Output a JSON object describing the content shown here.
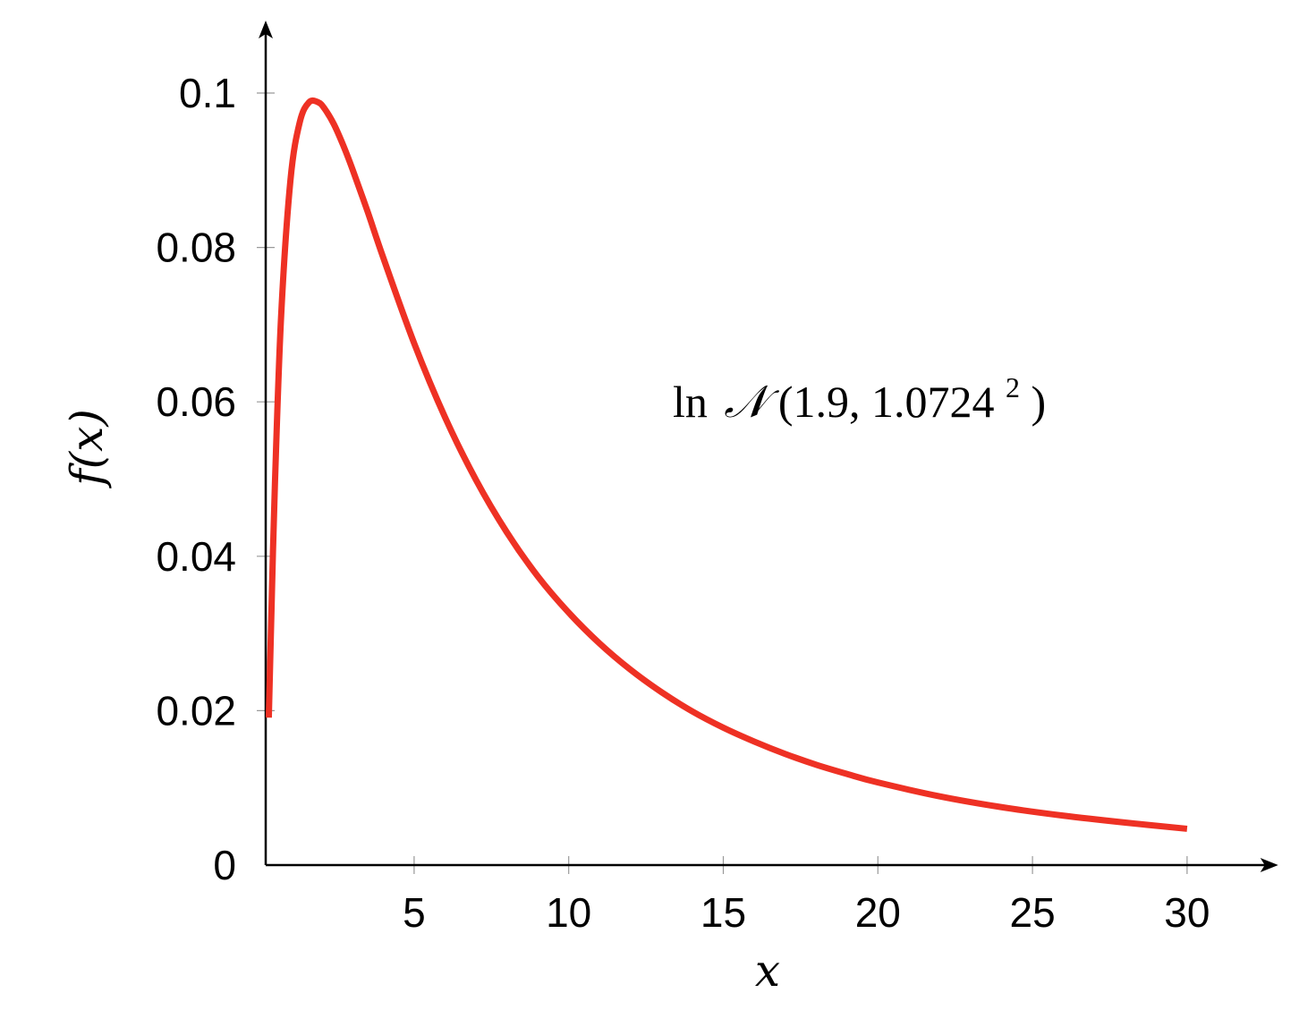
{
  "chart_data": {
    "type": "line",
    "title": "",
    "xlabel": "x",
    "ylabel": "f(x)",
    "xlim": [
      0.2,
      32.6
    ],
    "ylim": [
      0,
      0.108
    ],
    "xticks": [
      5,
      10,
      15,
      20,
      25,
      30
    ],
    "xtick_labels": [
      "5",
      "10",
      "15",
      "20",
      "25",
      "30"
    ],
    "yticks": [
      0,
      0.02,
      0.04,
      0.06,
      0.08,
      0.1
    ],
    "ytick_labels": [
      "0",
      "0.02",
      "0.04",
      "0.06",
      "0.08",
      "0.1"
    ],
    "grid": false,
    "series": [
      {
        "color": "#ee3124",
        "x": [
          0.3,
          0.4,
          0.5,
          0.7,
          1.0,
          1.3,
          1.6,
          1.9,
          2.1,
          2.4,
          2.7,
          3.0,
          3.5,
          4.0,
          5.0,
          6.0,
          7.0,
          8.0,
          9.0,
          10.0,
          11.0,
          12.0,
          13.0,
          14.0,
          15.0,
          16.0,
          17.0,
          18.0,
          19.0,
          20.0,
          22.0,
          24.0,
          26.0,
          28.0,
          30.0
        ],
        "y": [
          0.0191,
          0.0351,
          0.0496,
          0.0712,
          0.0887,
          0.0962,
          0.0988,
          0.0988,
          0.098,
          0.096,
          0.0933,
          0.0902,
          0.0846,
          0.0787,
          0.0676,
          0.058,
          0.0499,
          0.0431,
          0.0374,
          0.0327,
          0.0287,
          0.0253,
          0.0224,
          0.0199,
          0.0178,
          0.016,
          0.0144,
          0.013,
          0.0118,
          0.0107,
          0.0089,
          0.0075,
          0.0064,
          0.0055,
          0.0047
        ]
      }
    ],
    "annotation": {
      "prefix": "ln",
      "symbol": "𝒩",
      "args": "(1.9, 1.0724",
      "sup": "2",
      "close": ")"
    },
    "axis_color": "#000000"
  }
}
